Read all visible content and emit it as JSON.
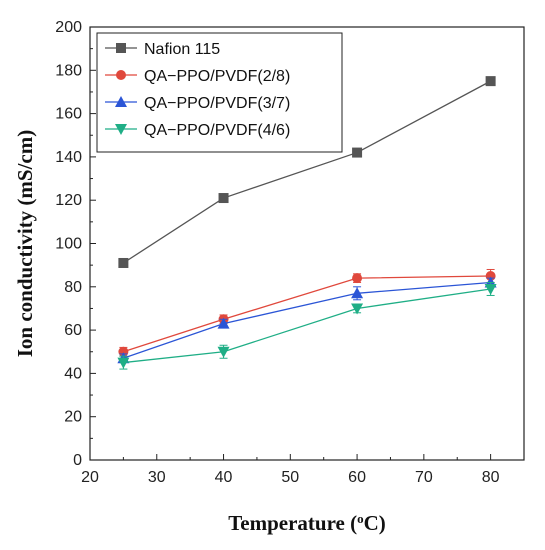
{
  "chart_data": {
    "type": "line",
    "xlabel": "Temperature (",
    "xlabel_sup": "o",
    "xlabel_tail": "C)",
    "ylabel": "Ion conductivity (mS/cm)",
    "xlim": [
      20,
      85
    ],
    "ylim": [
      0,
      200
    ],
    "xticks": [
      20,
      30,
      40,
      50,
      60,
      70,
      80
    ],
    "yticks": [
      0,
      20,
      40,
      60,
      80,
      100,
      120,
      140,
      160,
      180,
      200
    ],
    "grid": false,
    "legend_position": "top-left",
    "x": [
      25,
      40,
      60,
      80
    ],
    "series": [
      {
        "name": "Nafion 115",
        "values": [
          91,
          121,
          142,
          175
        ],
        "errors": [
          0,
          0,
          0,
          0
        ],
        "color": "#555555",
        "marker": "square"
      },
      {
        "name": "QA−PPO/PVDF(2/8)",
        "values": [
          50,
          65,
          84,
          85
        ],
        "errors": [
          2,
          2,
          2,
          3
        ],
        "color": "#e0483c",
        "marker": "circle"
      },
      {
        "name": "QA−PPO/PVDF(3/7)",
        "values": [
          47,
          63,
          77,
          82
        ],
        "errors": [
          2,
          2,
          3,
          2
        ],
        "color": "#2b55d6",
        "marker": "triangle-up"
      },
      {
        "name": "QA−PPO/PVDF(4/6)",
        "values": [
          45,
          50,
          70,
          79
        ],
        "errors": [
          3,
          3,
          2,
          3
        ],
        "color": "#1fae86",
        "marker": "triangle-down"
      }
    ]
  }
}
